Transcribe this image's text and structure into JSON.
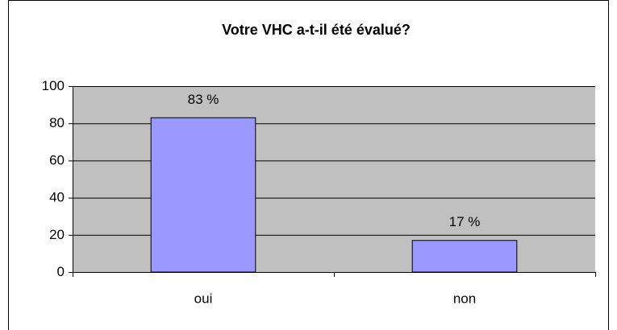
{
  "chart_data": {
    "type": "bar",
    "title": "Votre VHC a-t-il été évalué?",
    "categories": [
      "oui",
      "non"
    ],
    "values": [
      83,
      17
    ],
    "value_labels": [
      "83 %",
      "17 %"
    ],
    "color": "#9999ff",
    "ylim": [
      0,
      100
    ],
    "yticks": [
      0,
      20,
      40,
      60,
      80,
      100
    ],
    "grid": true
  }
}
